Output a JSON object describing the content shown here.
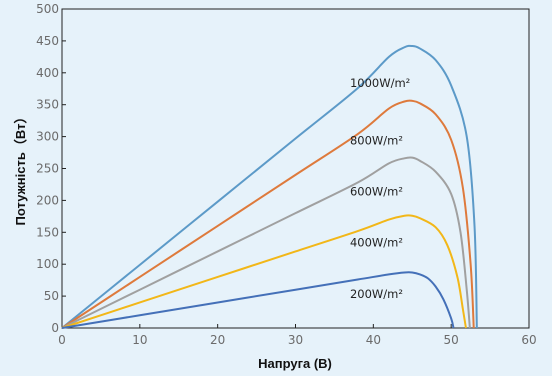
{
  "chart_data": {
    "type": "line",
    "xlabel": "Напруга (В)",
    "ylabel": "Потужність（Вт）",
    "xlim": [
      0,
      60
    ],
    "ylim": [
      0,
      500
    ],
    "xticks": [
      0,
      10,
      20,
      30,
      40,
      50,
      60
    ],
    "yticks": [
      0,
      50,
      100,
      150,
      200,
      250,
      300,
      350,
      400,
      450,
      500
    ],
    "grid": false,
    "legend": "none",
    "series": [
      {
        "name": "1000W/m²",
        "color": "#5c9ac8",
        "points": [
          [
            0,
            0
          ],
          [
            10,
            99
          ],
          [
            20,
            198
          ],
          [
            30,
            297
          ],
          [
            38,
            376
          ],
          [
            42,
            425
          ],
          [
            44,
            440
          ],
          [
            45,
            442
          ],
          [
            46,
            438
          ],
          [
            48,
            420
          ],
          [
            50,
            380
          ],
          [
            52,
            300
          ],
          [
            53,
            160
          ],
          [
            53.3,
            0
          ]
        ]
      },
      {
        "name": "800W/m²",
        "color": "#de7a3c",
        "points": [
          [
            0,
            0
          ],
          [
            10,
            80
          ],
          [
            20,
            160
          ],
          [
            30,
            240
          ],
          [
            38,
            304
          ],
          [
            42,
            344
          ],
          [
            44,
            355
          ],
          [
            45,
            356
          ],
          [
            46,
            352
          ],
          [
            48,
            335
          ],
          [
            50,
            295
          ],
          [
            51.5,
            220
          ],
          [
            52.5,
            100
          ],
          [
            52.9,
            0
          ]
        ]
      },
      {
        "name": "600W/m²",
        "color": "#a0a0a0",
        "points": [
          [
            0,
            0
          ],
          [
            10,
            60
          ],
          [
            20,
            120
          ],
          [
            30,
            180
          ],
          [
            38,
            228
          ],
          [
            42,
            258
          ],
          [
            44,
            266
          ],
          [
            45,
            267
          ],
          [
            46,
            262
          ],
          [
            48,
            245
          ],
          [
            50,
            210
          ],
          [
            51.2,
            150
          ],
          [
            52,
            60
          ],
          [
            52.4,
            0
          ]
        ]
      },
      {
        "name": "400W/m²",
        "color": "#f2b718",
        "points": [
          [
            0,
            0
          ],
          [
            10,
            40
          ],
          [
            20,
            80
          ],
          [
            30,
            120
          ],
          [
            38,
            152
          ],
          [
            42,
            170
          ],
          [
            44,
            176
          ],
          [
            45,
            176
          ],
          [
            46,
            172
          ],
          [
            48,
            158
          ],
          [
            49.5,
            130
          ],
          [
            50.8,
            80
          ],
          [
            51.5,
            30
          ],
          [
            51.9,
            0
          ]
        ]
      },
      {
        "name": "200W/m²",
        "color": "#4470b8",
        "points": [
          [
            0,
            0
          ],
          [
            10,
            20
          ],
          [
            20,
            40
          ],
          [
            30,
            60
          ],
          [
            38,
            76
          ],
          [
            42,
            84
          ],
          [
            44,
            87
          ],
          [
            45,
            87
          ],
          [
            46,
            84
          ],
          [
            47,
            78
          ],
          [
            48,
            65
          ],
          [
            49,
            45
          ],
          [
            50,
            15
          ],
          [
            50.3,
            0
          ]
        ]
      }
    ],
    "annotations": [
      {
        "text": "1000W/m²",
        "x": 37,
        "y": 378
      },
      {
        "text": "800W/m²",
        "x": 37,
        "y": 288
      },
      {
        "text": "600W/m²",
        "x": 37,
        "y": 208
      },
      {
        "text": "400W/m²",
        "x": 37,
        "y": 128
      },
      {
        "text": "200W/m²",
        "x": 37,
        "y": 47
      }
    ]
  }
}
